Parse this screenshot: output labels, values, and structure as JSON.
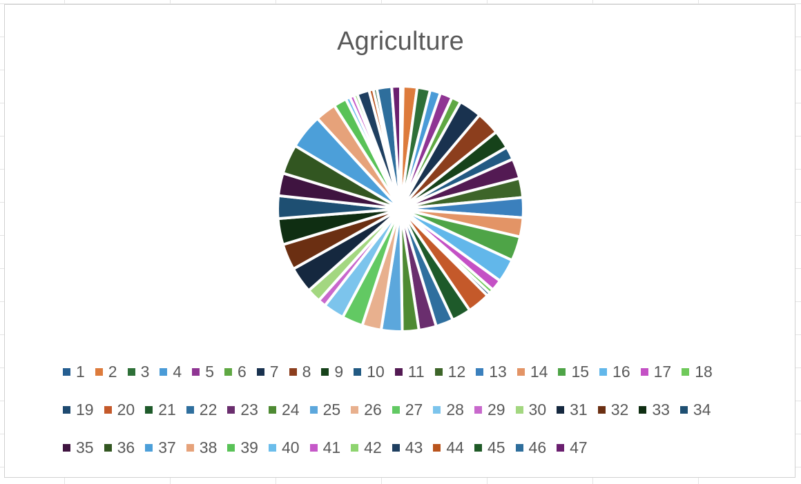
{
  "chart_data": {
    "type": "pie",
    "title": "Agriculture",
    "legend_position": "bottom",
    "categories": [
      "1",
      "2",
      "3",
      "4",
      "5",
      "6",
      "7",
      "8",
      "9",
      "10",
      "11",
      "12",
      "13",
      "14",
      "15",
      "16",
      "17",
      "18",
      "19",
      "20",
      "21",
      "22",
      "23",
      "24",
      "25",
      "26",
      "27",
      "28",
      "29",
      "30",
      "31",
      "32",
      "33",
      "34",
      "35",
      "36",
      "37",
      "38",
      "39",
      "40",
      "41",
      "42",
      "43",
      "44",
      "45",
      "46",
      "47"
    ],
    "values": [
      0.3,
      1.6,
      1.5,
      1.2,
      1.4,
      1.1,
      2.6,
      2.7,
      2.1,
      1.5,
      2.3,
      2.2,
      2.3,
      2.2,
      2.8,
      2.7,
      1.3,
      0.5,
      0.4,
      2.6,
      2.2,
      2.0,
      2.0,
      1.9,
      2.4,
      2.2,
      2.4,
      2.4,
      0.9,
      1.6,
      3.0,
      3.0,
      3.0,
      2.6,
      2.6,
      3.4,
      4.0,
      2.4,
      1.5,
      0.5,
      0.5,
      0.4,
      1.4,
      0.5,
      0.4,
      1.7,
      1.0
    ],
    "colors": [
      "#255E91",
      "#DD7B3C",
      "#2E7038",
      "#4A9BD7",
      "#8F3593",
      "#5FA843",
      "#19324F",
      "#8C3E1D",
      "#16421A",
      "#225A83",
      "#531A53",
      "#3D6529",
      "#3B80BD",
      "#E39466",
      "#4EA447",
      "#62B7EA",
      "#C451C5",
      "#6FC95A",
      "#1E4A70",
      "#C4592A",
      "#1E5A2A",
      "#2F6F9E",
      "#6A2E6E",
      "#4E8A33",
      "#5CA7DC",
      "#E8B08E",
      "#62C963",
      "#7CC4EC",
      "#C868CC",
      "#A3D780",
      "#15283F",
      "#6B2F12",
      "#0F2E12",
      "#1E4F72",
      "#3F1440",
      "#325621",
      "#4C9FD9",
      "#E6A27A",
      "#59C257",
      "#6BBDEB",
      "#C558C8",
      "#8ED46F",
      "#1F3F60",
      "#B9541D",
      "#1F5A27",
      "#2E6E9C",
      "#6A1F6F"
    ]
  }
}
